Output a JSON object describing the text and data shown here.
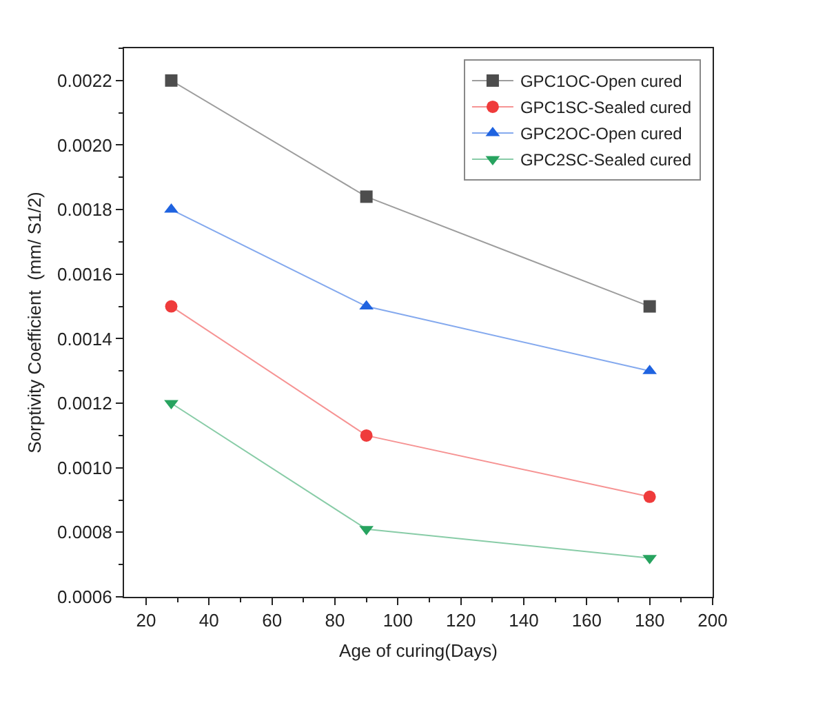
{
  "chart_data": {
    "type": "line",
    "xlabel": "Age of curing(Days)",
    "ylabel": "Sorptivity Coefficient  (mm/ S1/2)",
    "x": [
      28,
      90,
      180
    ],
    "series": [
      {
        "name": "GPC1OC-Open cured",
        "color": "#4d4d4d",
        "marker": "square",
        "values": [
          0.0022,
          0.00184,
          0.0015
        ]
      },
      {
        "name": "GPC1SC-Sealed cured",
        "color": "#ef3b3b",
        "marker": "circle",
        "values": [
          0.0015,
          0.0011,
          0.00091
        ]
      },
      {
        "name": "GPC2OC-Open cured",
        "color": "#1f63e0",
        "marker": "triangle",
        "values": [
          0.0018,
          0.0015,
          0.0013
        ]
      },
      {
        "name": "GPC2SC-Sealed cured",
        "color": "#27a35f",
        "marker": "triangle-down",
        "values": [
          0.0012,
          0.00081,
          0.00072
        ]
      }
    ],
    "xlim": [
      13,
      200
    ],
    "xticks": [
      20,
      40,
      60,
      80,
      100,
      120,
      140,
      160,
      180,
      200
    ],
    "ylim": [
      0.0006,
      0.0023
    ],
    "yticks": [
      0.0006,
      0.0008,
      {
        "value": 0.001,
        "label": "0.0010"
      },
      0.0012,
      0.0014,
      0.0016,
      0.0018,
      {
        "value": 0.002,
        "label": "0.0020"
      },
      0.0022
    ],
    "grid": false,
    "legend": "top right",
    "line_style": "solid"
  }
}
